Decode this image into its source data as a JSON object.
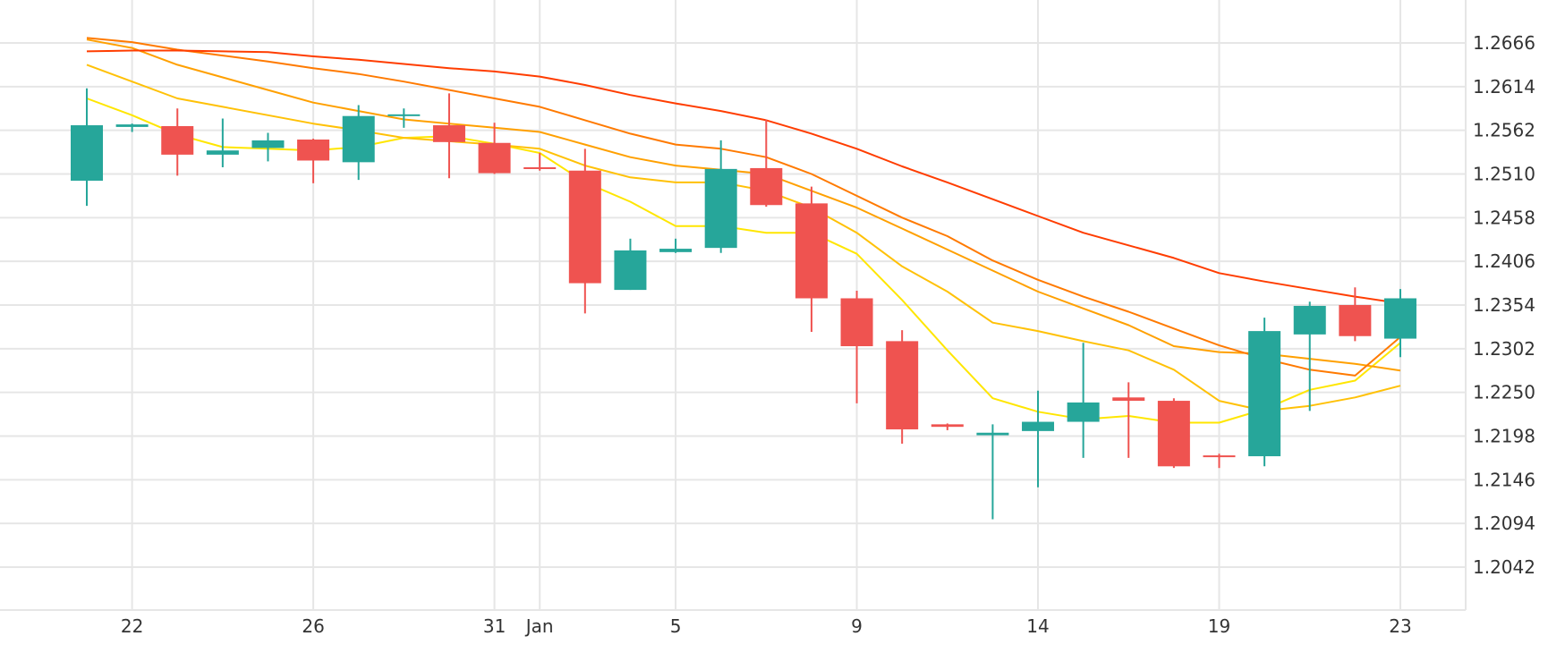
{
  "chart_data": {
    "type": "candlestick",
    "title": "",
    "xlabel": "",
    "ylabel": "",
    "ylim": [
      1.199,
      1.2718
    ],
    "x_ticks": [
      {
        "idx": 1,
        "label": "22"
      },
      {
        "idx": 5,
        "label": "26"
      },
      {
        "idx": 9,
        "label": "31"
      },
      {
        "idx": 10,
        "label": "Jan"
      },
      {
        "idx": 13,
        "label": "5"
      },
      {
        "idx": 17,
        "label": "9"
      },
      {
        "idx": 21,
        "label": "14"
      },
      {
        "idx": 25,
        "label": "19"
      },
      {
        "idx": 29,
        "label": "23"
      }
    ],
    "y_ticks": [
      "1.2666",
      "1.2614",
      "1.2562",
      "1.2510",
      "1.2458",
      "1.2406",
      "1.2354",
      "1.2302",
      "1.2250",
      "1.2198",
      "1.2146",
      "1.2094",
      "1.2042"
    ],
    "candles": [
      {
        "o": 1.2502,
        "h": 1.2612,
        "l": 1.2472,
        "c": 1.2568
      },
      {
        "o": 1.2566,
        "h": 1.257,
        "l": 1.256,
        "c": 1.2569
      },
      {
        "o": 1.2567,
        "h": 1.2588,
        "l": 1.2508,
        "c": 1.2533
      },
      {
        "o": 1.2533,
        "h": 1.2576,
        "l": 1.2518,
        "c": 1.2538
      },
      {
        "o": 1.2541,
        "h": 1.2559,
        "l": 1.2525,
        "c": 1.255
      },
      {
        "o": 1.2551,
        "h": 1.2552,
        "l": 1.2499,
        "c": 1.2526
      },
      {
        "o": 1.2524,
        "h": 1.2592,
        "l": 1.2503,
        "c": 1.2579
      },
      {
        "o": 1.2579,
        "h": 1.2588,
        "l": 1.2565,
        "c": 1.2581
      },
      {
        "o": 1.2568,
        "h": 1.2606,
        "l": 1.2505,
        "c": 1.2548
      },
      {
        "o": 1.2547,
        "h": 1.2571,
        "l": 1.251,
        "c": 1.2511
      },
      {
        "o": 1.2518,
        "h": 1.2535,
        "l": 1.2514,
        "c": 1.2517
      },
      {
        "o": 1.2514,
        "h": 1.254,
        "l": 1.2344,
        "c": 1.238
      },
      {
        "o": 1.2372,
        "h": 1.2433,
        "l": 1.2372,
        "c": 1.2419
      },
      {
        "o": 1.2417,
        "h": 1.2433,
        "l": 1.2416,
        "c": 1.2421
      },
      {
        "o": 1.2422,
        "h": 1.255,
        "l": 1.2416,
        "c": 1.2516
      },
      {
        "o": 1.2517,
        "h": 1.2575,
        "l": 1.2471,
        "c": 1.2473
      },
      {
        "o": 1.2475,
        "h": 1.2495,
        "l": 1.2322,
        "c": 1.2362
      },
      {
        "o": 1.2362,
        "h": 1.2371,
        "l": 1.2237,
        "c": 1.2305
      },
      {
        "o": 1.2311,
        "h": 1.2324,
        "l": 1.2189,
        "c": 1.2206
      },
      {
        "o": 1.2212,
        "h": 1.2213,
        "l": 1.2205,
        "c": 1.2209
      },
      {
        "o": 1.2199,
        "h": 1.2212,
        "l": 1.2099,
        "c": 1.2202
      },
      {
        "o": 1.2204,
        "h": 1.2252,
        "l": 1.2137,
        "c": 1.2215
      },
      {
        "o": 1.2215,
        "h": 1.2309,
        "l": 1.2172,
        "c": 1.2238
      },
      {
        "o": 1.2244,
        "h": 1.2262,
        "l": 1.2172,
        "c": 1.224
      },
      {
        "o": 1.224,
        "h": 1.2243,
        "l": 1.216,
        "c": 1.2162
      },
      {
        "o": 1.2175,
        "h": 1.2177,
        "l": 1.216,
        "c": 1.2173
      },
      {
        "o": 1.2174,
        "h": 1.2339,
        "l": 1.2162,
        "c": 1.2323
      },
      {
        "o": 1.2319,
        "h": 1.2358,
        "l": 1.2228,
        "c": 1.2353
      },
      {
        "o": 1.2354,
        "h": 1.2375,
        "l": 1.2311,
        "c": 1.2317
      },
      {
        "o": 1.2314,
        "h": 1.2373,
        "l": 1.2292,
        "c": 1.2362
      }
    ],
    "moving_averages": [
      {
        "color": "#ffe600",
        "values": [
          1.26,
          1.258,
          1.2557,
          1.2542,
          1.254,
          1.2538,
          1.2542,
          1.2553,
          1.2555,
          1.2546,
          1.2535,
          1.25,
          1.2477,
          1.2448,
          1.2448,
          1.244,
          1.244,
          1.2415,
          1.236,
          1.23,
          1.2243,
          1.2227,
          1.2218,
          1.2222,
          1.2214,
          1.2214,
          1.223,
          1.2253,
          1.2264,
          1.2309
        ]
      },
      {
        "color": "#ffc107",
        "values": [
          1.264,
          1.262,
          1.26,
          1.259,
          1.258,
          1.257,
          1.2562,
          1.2553,
          1.2549,
          1.2545,
          1.254,
          1.252,
          1.2506,
          1.25,
          1.25,
          1.249,
          1.247,
          1.244,
          1.24,
          1.237,
          1.2333,
          1.2323,
          1.2311,
          1.23,
          1.2277,
          1.224,
          1.2228,
          1.2234,
          1.2244,
          1.2258
        ]
      },
      {
        "color": "#ffa000",
        "values": [
          1.267,
          1.266,
          1.264,
          1.2625,
          1.261,
          1.2595,
          1.2585,
          1.2575,
          1.257,
          1.2565,
          1.256,
          1.2545,
          1.253,
          1.252,
          1.2515,
          1.251,
          1.249,
          1.247,
          1.2445,
          1.242,
          1.2395,
          1.237,
          1.235,
          1.233,
          1.2305,
          1.2298,
          1.2296,
          1.229,
          1.2284,
          1.2276
        ]
      },
      {
        "color": "#ff7a00",
        "values": [
          1.2672,
          1.2667,
          1.2658,
          1.2651,
          1.2644,
          1.2636,
          1.2629,
          1.262,
          1.261,
          1.26,
          1.259,
          1.2574,
          1.2558,
          1.2545,
          1.254,
          1.253,
          1.251,
          1.2484,
          1.2458,
          1.2436,
          1.2407,
          1.2384,
          1.2364,
          1.2346,
          1.2326,
          1.2306,
          1.229,
          1.2277,
          1.227,
          1.2316
        ]
      },
      {
        "color": "#ff3d00",
        "values": [
          1.2656,
          1.2657,
          1.2657,
          1.2656,
          1.2655,
          1.265,
          1.2646,
          1.2641,
          1.2636,
          1.2632,
          1.2626,
          1.2616,
          1.2604,
          1.2594,
          1.2585,
          1.2574,
          1.2558,
          1.254,
          1.2519,
          1.25,
          1.248,
          1.246,
          1.244,
          1.2425,
          1.241,
          1.2392,
          1.2382,
          1.2373,
          1.2364,
          1.2356
        ]
      }
    ],
    "up_color": "#26a69a",
    "down_color": "#ef5350",
    "grid": true,
    "y_axis_position": "right"
  }
}
